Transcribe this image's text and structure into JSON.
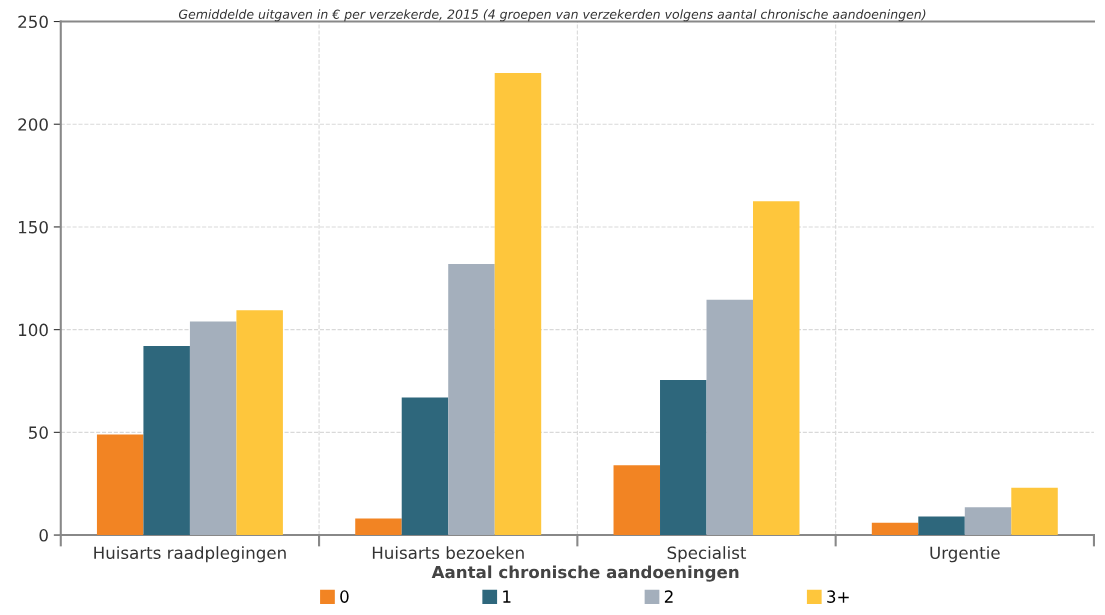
{
  "chart_data": {
    "type": "bar",
    "title": "Gemiddelde uitgaven in € per verzekerde, 2015 (4 groepen van verzekerden volgens aantal chronische aandoeningen)",
    "categories": [
      "Huisarts raadplegingen",
      "Huisarts bezoeken",
      "Specialist",
      "Urgentie"
    ],
    "series": [
      {
        "name": "0",
        "color": "#f28423",
        "values": [
          49,
          8,
          34,
          6
        ]
      },
      {
        "name": "1",
        "color": "#2e677c",
        "values": [
          92,
          67,
          75.5,
          9
        ]
      },
      {
        "name": "2",
        "color": "#a4afbc",
        "values": [
          104,
          132,
          114.5,
          13.5
        ]
      },
      {
        "name": "3+",
        "color": "#fec63c",
        "values": [
          109.5,
          225,
          162.5,
          23
        ]
      }
    ],
    "legend_title": "Aantal chronische aandoeningen",
    "ylim": [
      0,
      250
    ],
    "yticks": [
      0,
      50,
      100,
      150,
      200,
      250
    ],
    "grid": true,
    "legend": "bottom"
  }
}
